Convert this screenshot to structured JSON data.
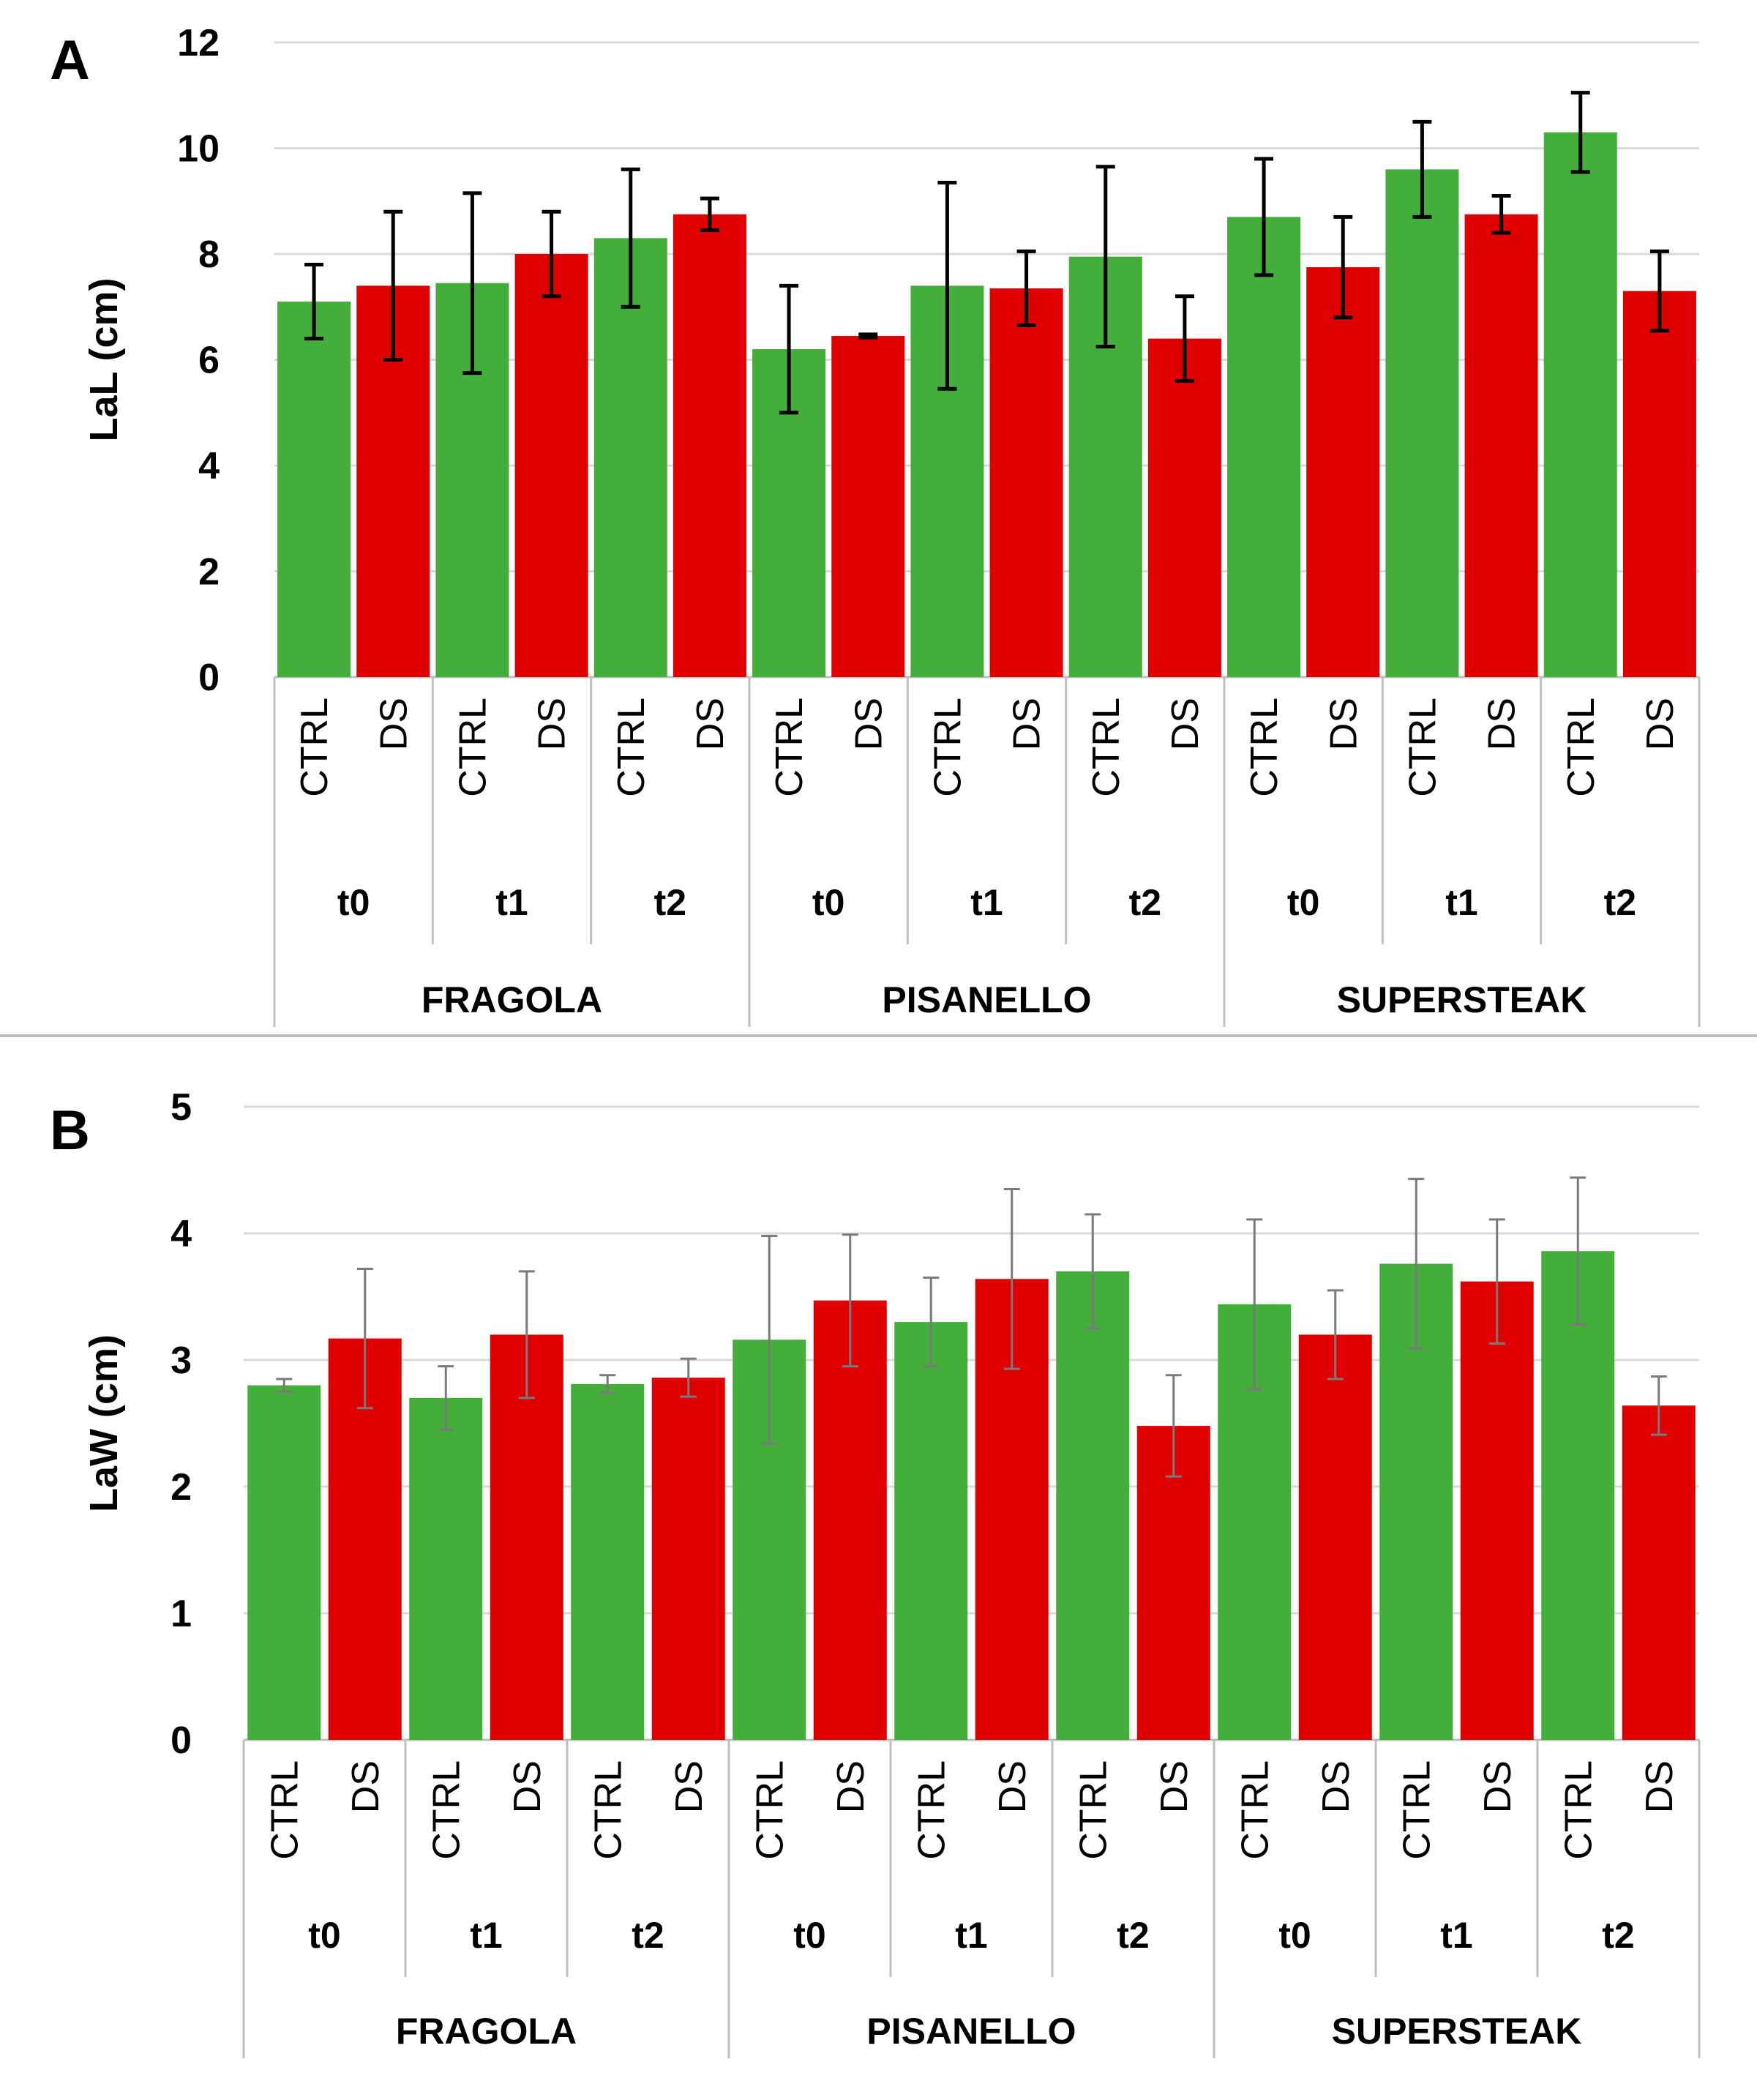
{
  "colors": {
    "ctrl": "#43AE3A",
    "ds": "#E00000",
    "grid": "#D9D9D9",
    "axis": "#BFBFBF"
  },
  "chart_data": [
    {
      "panel": "A",
      "type": "bar",
      "ylabel": "LaL (cm)",
      "xlabel": "",
      "ylim": [
        0,
        12
      ],
      "yticks": [
        0,
        2,
        4,
        6,
        8,
        10,
        12
      ],
      "grid": true,
      "conditions": [
        "CTRL",
        "DS"
      ],
      "times": [
        "t0",
        "t1",
        "t2"
      ],
      "cultivars": [
        "FRAGOLA",
        "PISANELLO",
        "SUPERSTEAK"
      ],
      "bars": [
        {
          "cultivar": "FRAGOLA",
          "time": "t0",
          "condition": "CTRL",
          "value": 7.1,
          "err": 0.7
        },
        {
          "cultivar": "FRAGOLA",
          "time": "t0",
          "condition": "DS",
          "value": 7.4,
          "err": 1.4
        },
        {
          "cultivar": "FRAGOLA",
          "time": "t1",
          "condition": "CTRL",
          "value": 7.45,
          "err": 1.7
        },
        {
          "cultivar": "FRAGOLA",
          "time": "t1",
          "condition": "DS",
          "value": 8.0,
          "err": 0.8
        },
        {
          "cultivar": "FRAGOLA",
          "time": "t2",
          "condition": "CTRL",
          "value": 8.3,
          "err": 1.3
        },
        {
          "cultivar": "FRAGOLA",
          "time": "t2",
          "condition": "DS",
          "value": 8.75,
          "err": 0.3
        },
        {
          "cultivar": "PISANELLO",
          "time": "t0",
          "condition": "CTRL",
          "value": 6.2,
          "err": 1.2
        },
        {
          "cultivar": "PISANELLO",
          "time": "t0",
          "condition": "DS",
          "value": 6.45,
          "err": 0.03
        },
        {
          "cultivar": "PISANELLO",
          "time": "t1",
          "condition": "CTRL",
          "value": 7.4,
          "err": 1.95
        },
        {
          "cultivar": "PISANELLO",
          "time": "t1",
          "condition": "DS",
          "value": 7.35,
          "err": 0.7
        },
        {
          "cultivar": "PISANELLO",
          "time": "t2",
          "condition": "CTRL",
          "value": 7.95,
          "err": 1.7
        },
        {
          "cultivar": "PISANELLO",
          "time": "t2",
          "condition": "DS",
          "value": 6.4,
          "err": 0.8
        },
        {
          "cultivar": "SUPERSTEAK",
          "time": "t0",
          "condition": "CTRL",
          "value": 8.7,
          "err": 1.1
        },
        {
          "cultivar": "SUPERSTEAK",
          "time": "t0",
          "condition": "DS",
          "value": 7.75,
          "err": 0.95
        },
        {
          "cultivar": "SUPERSTEAK",
          "time": "t1",
          "condition": "CTRL",
          "value": 9.6,
          "err": 0.9
        },
        {
          "cultivar": "SUPERSTEAK",
          "time": "t1",
          "condition": "DS",
          "value": 8.75,
          "err": 0.35
        },
        {
          "cultivar": "SUPERSTEAK",
          "time": "t2",
          "condition": "CTRL",
          "value": 10.3,
          "err": 0.75
        },
        {
          "cultivar": "SUPERSTEAK",
          "time": "t2",
          "condition": "DS",
          "value": 7.3,
          "err": 0.75
        }
      ]
    },
    {
      "panel": "B",
      "type": "bar",
      "ylabel": "LaW (cm)",
      "xlabel": "",
      "ylim": [
        0,
        5
      ],
      "yticks": [
        0,
        1,
        2,
        3,
        4,
        5
      ],
      "grid": true,
      "conditions": [
        "CTRL",
        "DS"
      ],
      "times": [
        "t0",
        "t1",
        "t2"
      ],
      "cultivars": [
        "FRAGOLA",
        "PISANELLO",
        "SUPERSTEAK"
      ],
      "bars": [
        {
          "cultivar": "FRAGOLA",
          "time": "t0",
          "condition": "CTRL",
          "value": 2.8,
          "err": 0.05
        },
        {
          "cultivar": "FRAGOLA",
          "time": "t0",
          "condition": "DS",
          "value": 3.17,
          "err": 0.55
        },
        {
          "cultivar": "FRAGOLA",
          "time": "t1",
          "condition": "CTRL",
          "value": 2.7,
          "err": 0.25
        },
        {
          "cultivar": "FRAGOLA",
          "time": "t1",
          "condition": "DS",
          "value": 3.2,
          "err": 0.5
        },
        {
          "cultivar": "FRAGOLA",
          "time": "t2",
          "condition": "CTRL",
          "value": 2.81,
          "err": 0.07
        },
        {
          "cultivar": "FRAGOLA",
          "time": "t2",
          "condition": "DS",
          "value": 2.86,
          "err": 0.15
        },
        {
          "cultivar": "PISANELLO",
          "time": "t0",
          "condition": "CTRL",
          "value": 3.16,
          "err": 0.82
        },
        {
          "cultivar": "PISANELLO",
          "time": "t0",
          "condition": "DS",
          "value": 3.47,
          "err": 0.52
        },
        {
          "cultivar": "PISANELLO",
          "time": "t1",
          "condition": "CTRL",
          "value": 3.3,
          "err": 0.35
        },
        {
          "cultivar": "PISANELLO",
          "time": "t1",
          "condition": "DS",
          "value": 3.64,
          "err": 0.71
        },
        {
          "cultivar": "PISANELLO",
          "time": "t2",
          "condition": "CTRL",
          "value": 3.7,
          "err": 0.45
        },
        {
          "cultivar": "PISANELLO",
          "time": "t2",
          "condition": "DS",
          "value": 2.48,
          "err": 0.4
        },
        {
          "cultivar": "SUPERSTEAK",
          "time": "t0",
          "condition": "CTRL",
          "value": 3.44,
          "err": 0.67
        },
        {
          "cultivar": "SUPERSTEAK",
          "time": "t0",
          "condition": "DS",
          "value": 3.2,
          "err": 0.35
        },
        {
          "cultivar": "SUPERSTEAK",
          "time": "t1",
          "condition": "CTRL",
          "value": 3.76,
          "err": 0.67
        },
        {
          "cultivar": "SUPERSTEAK",
          "time": "t1",
          "condition": "DS",
          "value": 3.62,
          "err": 0.49
        },
        {
          "cultivar": "SUPERSTEAK",
          "time": "t2",
          "condition": "CTRL",
          "value": 3.86,
          "err": 0.58
        },
        {
          "cultivar": "SUPERSTEAK",
          "time": "t2",
          "condition": "DS",
          "value": 2.64,
          "err": 0.23
        }
      ]
    }
  ]
}
